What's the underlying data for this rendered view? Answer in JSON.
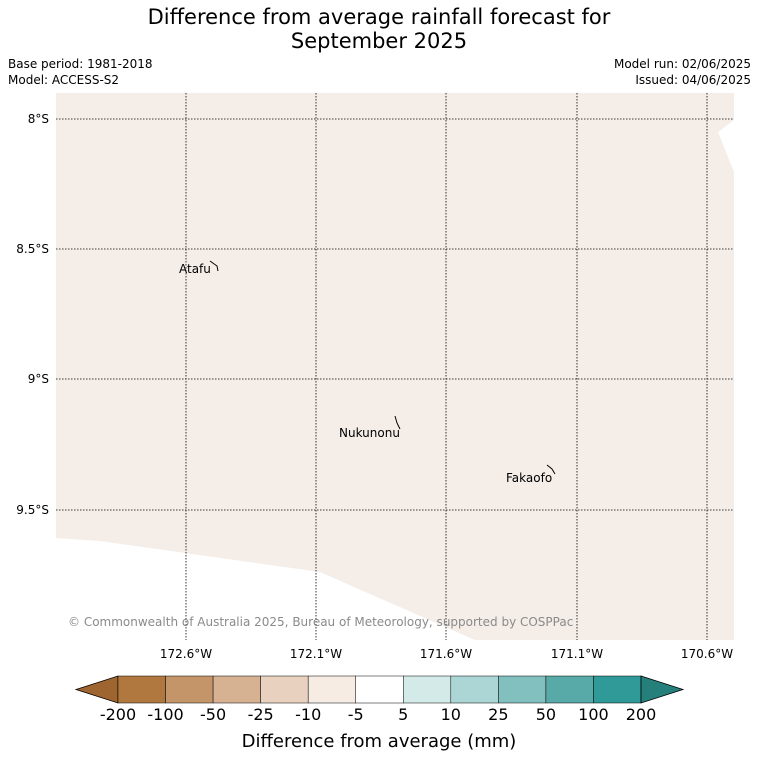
{
  "title_line1": "Difference from average rainfall forecast for",
  "title_line2": "September 2025",
  "base_period": "Base period: 1981-2018",
  "model": "Model: ACCESS-S2",
  "model_run": "Model run: 02/06/2025",
  "issued": "Issued: 04/06/2025",
  "map": {
    "lat_labels": [
      "8°S",
      "8.5°S",
      "9°S",
      "9.5°S"
    ],
    "lon_labels": [
      "172.6°W",
      "172.1°W",
      "171.6°W",
      "171.1°W",
      "170.6°W"
    ],
    "places": [
      "Atafu",
      "Nukunonu",
      "Fakaofo"
    ],
    "copyright": "© Commonwealth of Australia 2025, Bureau of Meteorology, supported by COSPPac",
    "land_color": "#f5ede8"
  },
  "colorbar": {
    "title": "Difference from average (mm)",
    "ticks": [
      "-200",
      "-100",
      "-50",
      "-25",
      "-10",
      "-5",
      "5",
      "10",
      "25",
      "50",
      "100",
      "200"
    ],
    "colors": [
      "#9f6530",
      "#b0783f",
      "#c49568",
      "#d6b292",
      "#e8d2bf",
      "#f6ece4",
      "#ffffff",
      "#d3eae8",
      "#abd6d5",
      "#82c0bf",
      "#58aaa9",
      "#2f9a98",
      "#25807c"
    ]
  }
}
